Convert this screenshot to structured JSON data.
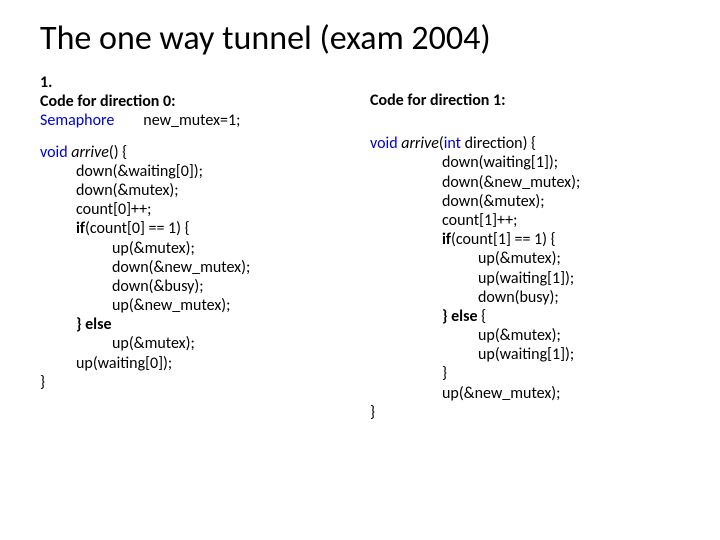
{
  "title": "The one way tunnel (exam 2004)",
  "left": {
    "num": "1.",
    "header": "Code for direction 0:",
    "semline_a": "Semaphore",
    "semline_b": "new_mutex=1;",
    "fn_void": "void",
    "fn_name": " arrive",
    "fn_sig": "() {",
    "l1": "down(&waiting[0]);",
    "l2": "down(&mutex);",
    "l3": "count[0]++;",
    "l4b": "if",
    "l4r": "(count[0] == 1) {",
    "l5": "up(&mutex);",
    "l6": "down(&new_mutex);",
    "l7": "down(&busy);",
    "l8": "up(&new_mutex);",
    "l9b": "} else",
    "l10": "up(&mutex);",
    "l11": "up(waiting[0]);",
    "close": "}"
  },
  "right": {
    "header": "Code for  direction 1:",
    "fn_void": "void",
    "fn_name": " arrive",
    "fn_parl": "(",
    "fn_int": "int",
    "fn_rest": " direction) {",
    "l1": "down(waiting[1]);",
    "l2": "down(&new_mutex);",
    "l3": "down(&mutex);",
    "l4": "count[1]++;",
    "l5b": "if",
    "l5r": "(count[1] == 1) {",
    "l6": "up(&mutex);",
    "l7": "up(waiting[1]);",
    "l8": "down(busy);",
    "l9b": "} else",
    "l9r": " {",
    "l10": "up(&mutex);",
    "l11": "up(waiting[1]);",
    "l12": "}",
    "l13": "up(&new_mutex);",
    "close": "}"
  }
}
